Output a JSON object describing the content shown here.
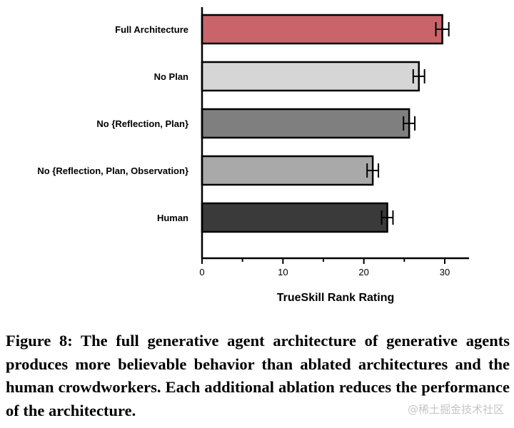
{
  "chart_data": {
    "type": "bar",
    "orientation": "horizontal",
    "categories": [
      "Full Architecture",
      "No Plan",
      "No {Reflection, Plan}",
      "No {Reflection, Plan, Observation}",
      "Human"
    ],
    "values": [
      29.7,
      26.8,
      25.6,
      21.1,
      22.9
    ],
    "errors": [
      0.8,
      0.7,
      0.7,
      0.7,
      0.7
    ],
    "colors": [
      "#c9656a",
      "#d6d6d6",
      "#7f7f7f",
      "#a9a9a9",
      "#3a3a3a"
    ],
    "xlabel": "TrueSkill Rank Rating",
    "xlim": [
      0,
      33
    ],
    "xticks": [
      0,
      10,
      20,
      30
    ],
    "grid": false
  },
  "caption": {
    "text": "Figure 8: The full generative agent architecture of gener­ative agents produces more believable behavior than ab­lated architectures and the human crowdworkers. Each addi­tional ablation reduces the performance of the architecture."
  },
  "watermark": {
    "text": "@稀土掘金技术社区"
  }
}
